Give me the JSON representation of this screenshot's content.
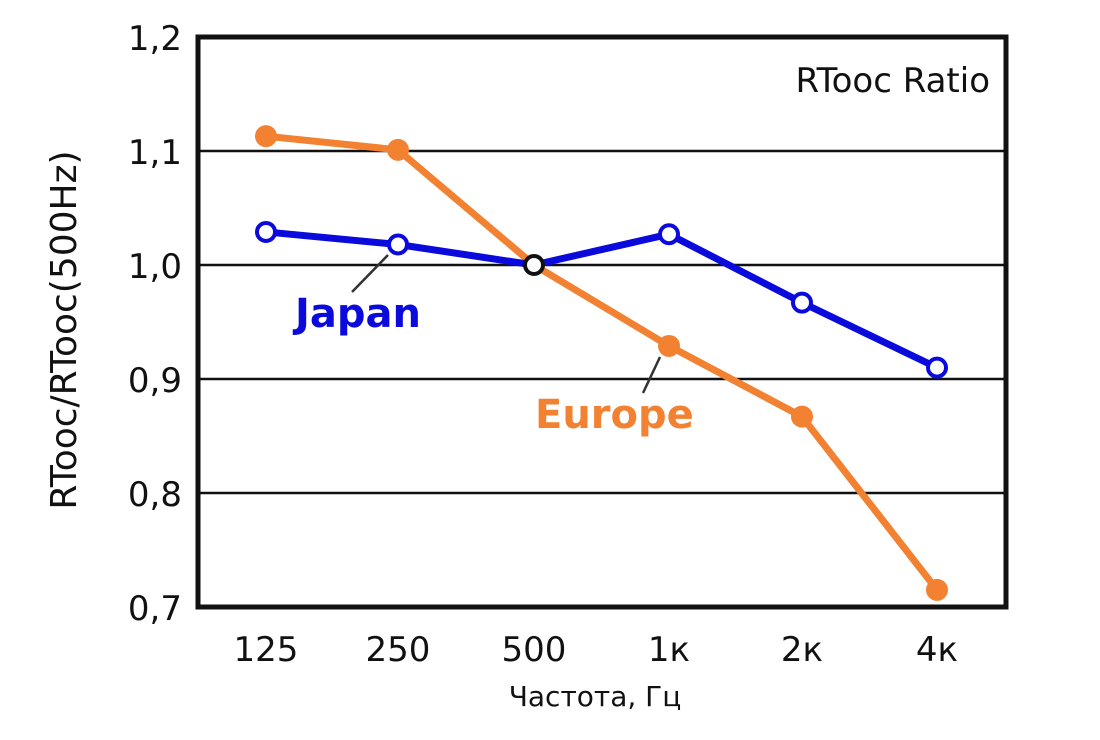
{
  "chart_data": {
    "type": "line",
    "title": "RTooc Ratio",
    "xlabel": "Частота, Гц",
    "ylabel": "RTooc/RTooc(500Hz)",
    "categories": [
      "125",
      "250",
      "500",
      "1к",
      "2к",
      "4к"
    ],
    "yticks": [
      "1,2",
      "1,1",
      "1,0",
      "0,9",
      "0,8",
      "0,7"
    ],
    "ylim": [
      0.7,
      1.2
    ],
    "grid": true,
    "series": [
      {
        "name": "Japan",
        "color": "#0a0adc",
        "marker": "open-circle",
        "values": [
          1.029,
          1.018,
          1.0,
          1.027,
          0.967,
          0.91
        ]
      },
      {
        "name": "Europe",
        "color": "#f28232",
        "marker": "filled-circle",
        "values": [
          1.113,
          1.101,
          1.0,
          0.929,
          0.867,
          0.715
        ]
      }
    ]
  }
}
